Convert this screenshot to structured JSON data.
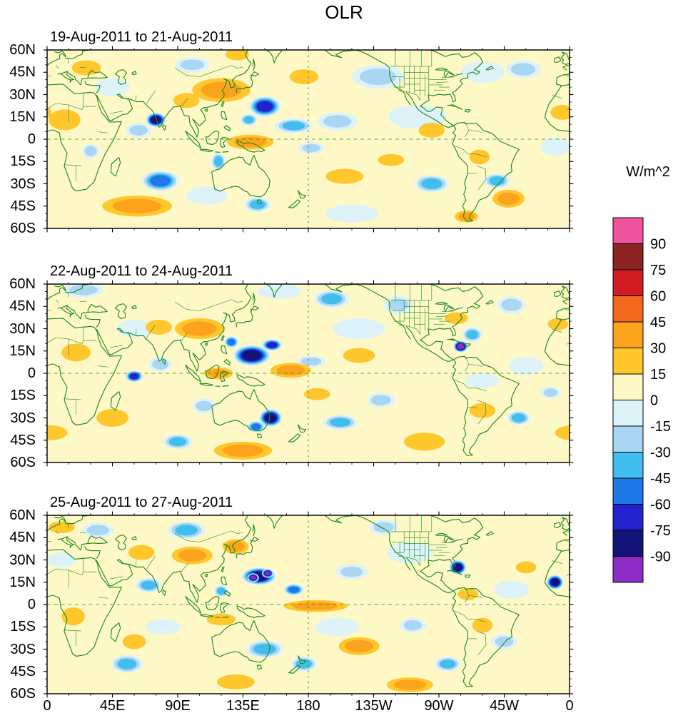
{
  "title": "OLR",
  "colorbar": {
    "unit_label": "W/m^2",
    "tick_labels": [
      "90",
      "75",
      "60",
      "45",
      "30",
      "15",
      "0",
      "-15",
      "-30",
      "-45",
      "-60",
      "-75",
      "-90"
    ],
    "colors_top_to_bottom": [
      "#F0539E",
      "#8B2323",
      "#D21C24",
      "#F4681E",
      "#FCA31E",
      "#FFC72C",
      "#FDF8C6",
      "#DDF3F9",
      "#ABD6F2",
      "#41BEEE",
      "#1E78E8",
      "#2323CD",
      "#131378",
      "#8B2BC8"
    ]
  },
  "axes": {
    "lat_tick_labels": [
      "60N",
      "45N",
      "30N",
      "15N",
      "0",
      "15S",
      "30S",
      "45S",
      "60S"
    ],
    "lon_tick_labels": [
      "0",
      "45E",
      "90E",
      "135E",
      "180",
      "135W",
      "90W",
      "45W",
      "0"
    ]
  },
  "map_style": {
    "coastline_color": "#1E8B1E",
    "frame_color": "#000000"
  },
  "chart_data": {
    "type": "heatmap",
    "subtype": "filled-contour-anomaly-maps",
    "variable": "OLR",
    "unit": "W/m^2",
    "lon_range_deg": [
      0,
      360
    ],
    "lat_range_deg": [
      -60,
      60
    ],
    "contour_levels": [
      -90,
      -75,
      -60,
      -45,
      -30,
      -15,
      0,
      15,
      30,
      45,
      60,
      75,
      90
    ],
    "grid": false,
    "legend_position": "right",
    "feature_format": [
      "center_lon_deg",
      "center_lat_deg",
      "radius_lon_deg",
      "radius_lat_deg",
      "peak_anomaly_wm2"
    ],
    "panels": [
      {
        "title": "19-Aug-2011 to 21-Aug-2011",
        "features": [
          [
            75,
            13,
            7,
            5,
            -80
          ],
          [
            63,
            6,
            9,
            5,
            -30
          ],
          [
            150,
            22,
            11,
            7,
            -75
          ],
          [
            139,
            13,
            6,
            4,
            -45
          ],
          [
            170,
            9,
            13,
            5,
            -35
          ],
          [
            200,
            12,
            14,
            6,
            -30
          ],
          [
            182,
            -6,
            9,
            4,
            -30
          ],
          [
            78,
            -28,
            13,
            7,
            -60
          ],
          [
            118,
            -15,
            5,
            6,
            -45
          ],
          [
            265,
            -30,
            12,
            6,
            -45
          ],
          [
            310,
            -28,
            9,
            5,
            -40
          ],
          [
            328,
            47,
            12,
            6,
            -30
          ],
          [
            228,
            42,
            18,
            8,
            -30
          ],
          [
            100,
            50,
            12,
            5,
            -30
          ],
          [
            145,
            -44,
            9,
            5,
            -45
          ],
          [
            30,
            -8,
            6,
            5,
            -30
          ],
          [
            350,
            -5,
            10,
            6,
            -14
          ],
          [
            255,
            15,
            20,
            8,
            -14
          ],
          [
            300,
            45,
            15,
            7,
            -14
          ],
          [
            45,
            35,
            12,
            6,
            -14
          ],
          [
            210,
            -50,
            18,
            6,
            -14
          ],
          [
            110,
            -38,
            14,
            6,
            -14
          ],
          [
            120,
            33,
            20,
            8,
            45
          ],
          [
            96,
            26,
            9,
            5,
            30
          ],
          [
            140,
            -2,
            16,
            5,
            45
          ],
          [
            62,
            -45,
            24,
            7,
            45
          ],
          [
            12,
            13,
            11,
            7,
            30
          ],
          [
            355,
            18,
            8,
            5,
            30
          ],
          [
            27,
            48,
            10,
            5,
            30
          ],
          [
            205,
            -25,
            13,
            5,
            30
          ],
          [
            237,
            -14,
            9,
            4,
            30
          ],
          [
            265,
            6,
            9,
            5,
            30
          ],
          [
            298,
            -12,
            7,
            5,
            30
          ],
          [
            318,
            -40,
            11,
            6,
            45
          ],
          [
            289,
            -52,
            8,
            4,
            45
          ],
          [
            177,
            42,
            10,
            5,
            30
          ],
          [
            131,
            57,
            8,
            4,
            30
          ]
        ]
      },
      {
        "title": "22-Aug-2011 to 24-Aug-2011",
        "features": [
          [
            141,
            12,
            13,
            7,
            -85
          ],
          [
            155,
            19,
            7,
            4,
            -75
          ],
          [
            127,
            21,
            5,
            4,
            -60
          ],
          [
            60,
            -2,
            6,
            4,
            -75
          ],
          [
            78,
            6,
            8,
            5,
            -30
          ],
          [
            154,
            -30,
            8,
            6,
            -88
          ],
          [
            144,
            -36,
            6,
            4,
            -60
          ],
          [
            285,
            18,
            5,
            4,
            -97
          ],
          [
            293,
            26,
            7,
            5,
            -45
          ],
          [
            202,
            -33,
            12,
            5,
            -45
          ],
          [
            230,
            -18,
            10,
            5,
            -30
          ],
          [
            325,
            -30,
            8,
            5,
            -45
          ],
          [
            347,
            -13,
            7,
            4,
            -30
          ],
          [
            25,
            56,
            14,
            5,
            -30
          ],
          [
            196,
            50,
            12,
            6,
            -35
          ],
          [
            242,
            46,
            10,
            6,
            -30
          ],
          [
            320,
            46,
            10,
            6,
            -30
          ],
          [
            108,
            -22,
            8,
            5,
            -30
          ],
          [
            90,
            -46,
            10,
            5,
            -45
          ],
          [
            182,
            8,
            10,
            4,
            -30
          ],
          [
            215,
            30,
            18,
            7,
            -14
          ],
          [
            330,
            5,
            12,
            6,
            -14
          ],
          [
            300,
            -5,
            12,
            5,
            -14
          ],
          [
            60,
            30,
            12,
            6,
            -14
          ],
          [
            160,
            55,
            15,
            5,
            -14
          ],
          [
            105,
            30,
            17,
            7,
            45
          ],
          [
            77,
            31,
            9,
            5,
            30
          ],
          [
            168,
            2,
            14,
            5,
            45
          ],
          [
            118,
            0,
            10,
            4,
            40
          ],
          [
            135,
            -52,
            20,
            6,
            45
          ],
          [
            45,
            -30,
            11,
            6,
            30
          ],
          [
            2,
            -40,
            12,
            5,
            30
          ],
          [
            260,
            -46,
            14,
            6,
            30
          ],
          [
            300,
            -25,
            9,
            5,
            30
          ],
          [
            282,
            37,
            8,
            4,
            30
          ],
          [
            20,
            14,
            10,
            6,
            30
          ],
          [
            215,
            12,
            11,
            5,
            30
          ],
          [
            186,
            -14,
            9,
            4,
            30
          ],
          [
            352,
            33,
            7,
            4,
            30
          ]
        ]
      },
      {
        "title": "25-Aug-2011 to 27-Aug-2011",
        "features": [
          [
            146,
            19,
            12,
            6,
            -85
          ],
          [
            142,
            18,
            4,
            3,
            -100
          ],
          [
            152,
            21,
            4,
            3,
            -100
          ],
          [
            170,
            10,
            7,
            4,
            -60
          ],
          [
            120,
            9,
            5,
            4,
            -45
          ],
          [
            283,
            25,
            6,
            5,
            -80
          ],
          [
            350,
            15,
            6,
            5,
            -85
          ],
          [
            70,
            13,
            9,
            5,
            -45
          ],
          [
            96,
            50,
            13,
            6,
            -45
          ],
          [
            35,
            50,
            11,
            5,
            -30
          ],
          [
            150,
            -30,
            13,
            6,
            -45
          ],
          [
            177,
            -40,
            9,
            5,
            -45
          ],
          [
            210,
            22,
            11,
            5,
            -30
          ],
          [
            252,
            -14,
            9,
            5,
            -30
          ],
          [
            276,
            -40,
            9,
            5,
            -45
          ],
          [
            315,
            -25,
            9,
            5,
            -30
          ],
          [
            55,
            -40,
            11,
            6,
            -45
          ],
          [
            232,
            52,
            10,
            5,
            -30
          ],
          [
            250,
            35,
            16,
            7,
            -14
          ],
          [
            320,
            10,
            12,
            6,
            -14
          ],
          [
            200,
            -15,
            15,
            6,
            -14
          ],
          [
            80,
            -15,
            12,
            5,
            -14
          ],
          [
            10,
            30,
            10,
            5,
            -14
          ],
          [
            100,
            33,
            14,
            6,
            45
          ],
          [
            130,
            39,
            9,
            5,
            45
          ],
          [
            65,
            35,
            9,
            5,
            30
          ],
          [
            185,
            -1,
            22,
            4,
            40
          ],
          [
            120,
            -10,
            10,
            4,
            30
          ],
          [
            215,
            -28,
            14,
            6,
            45
          ],
          [
            250,
            -54,
            16,
            5,
            45
          ],
          [
            130,
            -52,
            13,
            5,
            30
          ],
          [
            18,
            -8,
            8,
            6,
            30
          ],
          [
            300,
            -14,
            7,
            5,
            30
          ],
          [
            330,
            25,
            7,
            4,
            30
          ],
          [
            290,
            7,
            7,
            4,
            30
          ],
          [
            10,
            52,
            9,
            4,
            30
          ],
          [
            60,
            -25,
            8,
            5,
            30
          ]
        ]
      }
    ]
  }
}
